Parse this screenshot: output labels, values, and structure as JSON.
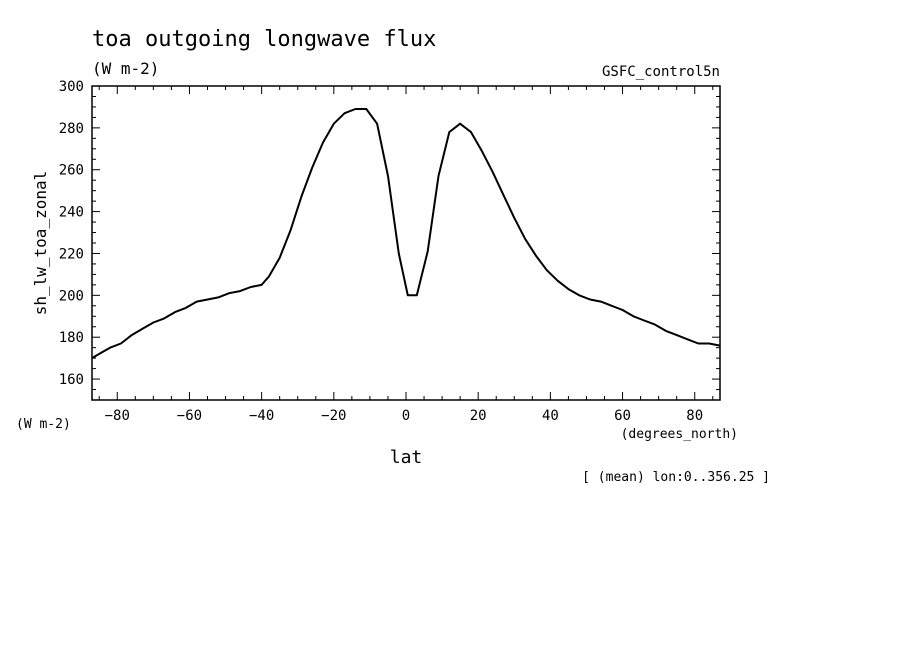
{
  "chart_data": {
    "type": "line",
    "title": "toa outgoing longwave flux",
    "subtitle": "(W m-2)",
    "dataset_label": "GSFC_control5n",
    "ylabel": "sh_lw_toa_zonal",
    "yunits": "(W m-2)",
    "xlabel": "lat",
    "xunits": "(degrees_north)",
    "footnote": "[ (mean) lon:0..356.25 ]",
    "xlim": [
      -87,
      87
    ],
    "ylim": [
      150,
      300
    ],
    "xticks": [
      -80,
      -60,
      -40,
      -20,
      0,
      20,
      40,
      60,
      80
    ],
    "yticks": [
      160,
      180,
      200,
      220,
      240,
      260,
      280,
      300
    ],
    "grid": false,
    "series": [
      {
        "color": "#000000",
        "x": [
          -87,
          -85,
          -82,
          -79,
          -76,
          -73,
          -70,
          -67,
          -64,
          -61,
          -58,
          -55,
          -52,
          -49,
          -46,
          -43,
          -40,
          -38,
          -35,
          -32,
          -29,
          -26,
          -23,
          -20,
          -17,
          -14,
          -11,
          -8,
          -5,
          -2,
          0.5,
          3,
          6,
          9,
          12,
          15,
          18,
          21,
          24,
          27,
          30,
          33,
          36,
          39,
          42,
          45,
          48,
          51,
          54,
          57,
          60,
          63,
          66,
          69,
          72,
          75,
          78,
          81,
          84,
          87
        ],
        "y": [
          170,
          172,
          175,
          177,
          181,
          184,
          187,
          189,
          192,
          194,
          197,
          198,
          199,
          201,
          202,
          204,
          205,
          209,
          218,
          231,
          247,
          261,
          273,
          282,
          287,
          289,
          289,
          282,
          257,
          220,
          200,
          200,
          221,
          257,
          278,
          282,
          278,
          269,
          259,
          248,
          237,
          227,
          219,
          212,
          207,
          203,
          200,
          198,
          197,
          195,
          193,
          190,
          188,
          186,
          183,
          181,
          179,
          177,
          177,
          176
        ]
      }
    ]
  }
}
